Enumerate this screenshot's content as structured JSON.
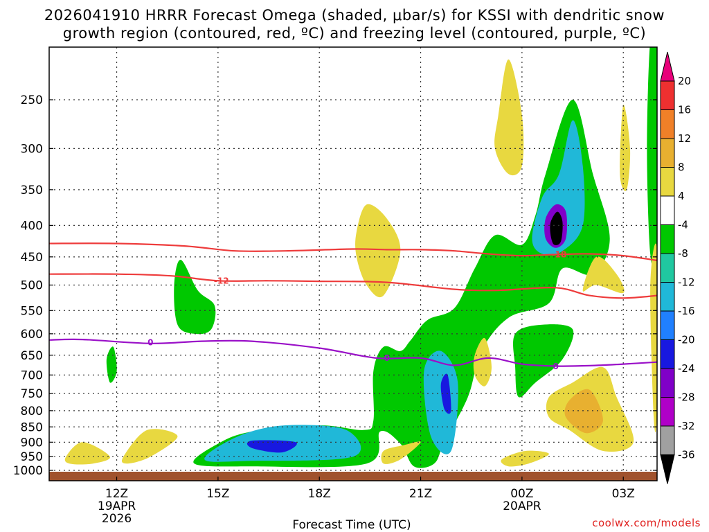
{
  "title": {
    "line1": "2026041910 HRRR Forecast Omega (shaded, μbar/s) for KSSI with dendritic snow",
    "line2": "growth region (contoured, red, ºC) and freezing level (contoured, purple, ºC)"
  },
  "credit": "coolwx.com/models",
  "chart_data": {
    "type": "time-height cross section",
    "xlabel": "Forecast Time (UTC)",
    "ylabel": "",
    "x_units": "forecast hours from 2026-04-19 10Z",
    "xlim": [
      0,
      18
    ],
    "ylim": [
      1000,
      200
    ],
    "y_scale": "log-pressure",
    "x_ticks": [
      {
        "hour": 2,
        "label": "12Z",
        "sub1": "19APR",
        "sub2": "2026"
      },
      {
        "hour": 5,
        "label": "15Z",
        "sub1": "",
        "sub2": ""
      },
      {
        "hour": 8,
        "label": "18Z",
        "sub1": "",
        "sub2": ""
      },
      {
        "hour": 11,
        "label": "21Z",
        "sub1": "",
        "sub2": ""
      },
      {
        "hour": 14,
        "label": "00Z",
        "sub1": "20APR",
        "sub2": ""
      },
      {
        "hour": 17,
        "label": "03Z",
        "sub1": "",
        "sub2": ""
      }
    ],
    "y_ticks": [
      250,
      300,
      350,
      400,
      450,
      500,
      550,
      600,
      650,
      700,
      750,
      800,
      850,
      900,
      950,
      1000
    ],
    "colorbar": {
      "label_units": "μbar/s",
      "levels": [
        "20",
        "16",
        "12",
        "8",
        "4",
        "-4",
        "-8",
        "-12",
        "-16",
        "-20",
        "-24",
        "-28",
        "-32",
        "-36"
      ],
      "colors": [
        "#e8007a",
        "#ee3030",
        "#f08028",
        "#e8b030",
        "#e8d840",
        "#ffffff",
        "#00c800",
        "#20c8a0",
        "#20b8d8",
        "#2080ff",
        "#1818e0",
        "#8000c8",
        "#b000c8",
        "#a0a0a0",
        "#000000"
      ]
    },
    "shaded_regions": [
      {
        "name": "upward-motion-lower",
        "range": "-4 to -8",
        "fill": "#00c800",
        "points": [
          [
            4.3,
            975
          ],
          [
            5,
            905
          ],
          [
            6,
            865
          ],
          [
            8,
            845
          ],
          [
            9.3,
            860
          ],
          [
            9.6,
            830
          ],
          [
            9.6,
            690
          ],
          [
            9.9,
            630
          ],
          [
            10.4,
            640
          ],
          [
            10.7,
            615
          ],
          [
            11.2,
            570
          ],
          [
            12,
            545
          ],
          [
            12.6,
            470
          ],
          [
            13.2,
            415
          ],
          [
            14,
            430
          ],
          [
            14.4,
            385
          ],
          [
            14.7,
            330
          ],
          [
            15.5,
            250
          ],
          [
            16.1,
            330
          ],
          [
            16.6,
            420
          ],
          [
            16.1,
            480
          ],
          [
            15.2,
            470
          ],
          [
            14.8,
            535
          ],
          [
            13.6,
            565
          ],
          [
            12.8,
            640
          ],
          [
            12.4,
            760
          ],
          [
            11.7,
            900
          ],
          [
            11.4,
            975
          ],
          [
            10.8,
            985
          ],
          [
            10.4,
            905
          ],
          [
            9.8,
            865
          ],
          [
            9.4,
            975
          ],
          [
            6,
            985
          ]
        ]
      },
      {
        "name": "upward-motion-upper-right",
        "range": "-4 to -8",
        "fill": "#00c800",
        "points": [
          [
            17.8,
            200
          ],
          [
            18,
            200
          ],
          [
            18,
            440
          ],
          [
            17.8,
            445
          ],
          [
            17.7,
            300
          ]
        ]
      },
      {
        "name": "upward-motion-mid-left",
        "range": "-4 to -8",
        "fill": "#00c800",
        "points": [
          [
            3.7,
            500
          ],
          [
            3.9,
            455
          ],
          [
            4.4,
            510
          ],
          [
            4.9,
            540
          ],
          [
            4.8,
            590
          ],
          [
            4.3,
            600
          ],
          [
            3.8,
            580
          ]
        ]
      },
      {
        "name": "upward-motion-small-left",
        "range": "-4 to -8",
        "fill": "#00c800",
        "points": [
          [
            1.7,
            660
          ],
          [
            1.9,
            630
          ],
          [
            2,
            690
          ],
          [
            1.8,
            720
          ]
        ]
      },
      {
        "name": "upward-motion-right-low",
        "range": "-4 to -8",
        "fill": "#00c800",
        "points": [
          [
            13.8,
            600
          ],
          [
            14.6,
            580
          ],
          [
            15.5,
            590
          ],
          [
            15.2,
            660
          ],
          [
            14.4,
            720
          ],
          [
            13.9,
            760
          ],
          [
            13.8,
            680
          ]
        ]
      },
      {
        "name": "upward-motion-lower-core",
        "range": "-8 to -16",
        "fill": "#20b8d8",
        "points": [
          [
            4.6,
            960
          ],
          [
            5.6,
            880
          ],
          [
            7,
            845
          ],
          [
            8.8,
            860
          ],
          [
            9,
            950
          ],
          [
            6,
            965
          ]
        ]
      },
      {
        "name": "upward-motion-lower-strong",
        "range": "-20 to -24",
        "fill": "#1818e0",
        "points": [
          [
            6,
            895
          ],
          [
            7.3,
            900
          ],
          [
            6.9,
            935
          ],
          [
            6,
            920
          ]
        ]
      },
      {
        "name": "upward-motion-mid-core",
        "range": "-8 to -16",
        "fill": "#20b8d8",
        "points": [
          [
            11.1,
            690
          ],
          [
            11.6,
            640
          ],
          [
            12.1,
            720
          ],
          [
            11.9,
            930
          ],
          [
            11.3,
            880
          ]
        ]
      },
      {
        "name": "upward-motion-mid-strong",
        "range": "-16 to -24",
        "fill": "#1818e0",
        "points": [
          [
            11.6,
            725
          ],
          [
            11.8,
            700
          ],
          [
            11.9,
            800
          ],
          [
            11.7,
            795
          ]
        ]
      },
      {
        "name": "upward-motion-upper-core",
        "range": "-8 to -28",
        "fill": "#20b8d8",
        "points": [
          [
            14.3,
            420
          ],
          [
            14.6,
            360
          ],
          [
            15.1,
            330
          ],
          [
            15.5,
            270
          ],
          [
            15.8,
            320
          ],
          [
            15.8,
            400
          ],
          [
            15.2,
            440
          ],
          [
            14.6,
            445
          ]
        ]
      },
      {
        "name": "upward-motion-upper-strong",
        "range": "-28 to -32",
        "fill": "#8000c8",
        "points": [
          [
            14.7,
            390
          ],
          [
            15,
            370
          ],
          [
            15.3,
            380
          ],
          [
            15.3,
            420
          ],
          [
            15,
            435
          ],
          [
            14.7,
            420
          ]
        ]
      },
      {
        "name": "upward-motion-upper-max",
        "range": "< -36",
        "fill": "#000000",
        "points": [
          [
            14.85,
            395
          ],
          [
            15.05,
            380
          ],
          [
            15.2,
            395
          ],
          [
            15.15,
            425
          ],
          [
            14.95,
            430
          ],
          [
            14.85,
            415
          ]
        ]
      },
      {
        "name": "sinking-motion-upper-a",
        "range": "4 to 8",
        "fill": "#e8d840",
        "points": [
          [
            13.3,
            265
          ],
          [
            13.6,
            215
          ],
          [
            14,
            265
          ],
          [
            14,
            320
          ],
          [
            13.6,
            330
          ],
          [
            13.2,
            300
          ]
        ]
      },
      {
        "name": "sinking-motion-upper-b",
        "range": "4 to 8",
        "fill": "#e8d840",
        "points": [
          [
            16.9,
            330
          ],
          [
            17,
            255
          ],
          [
            17.2,
            300
          ],
          [
            17.1,
            350
          ]
        ]
      },
      {
        "name": "sinking-motion-mid-a",
        "range": "4 to 8",
        "fill": "#e8d840",
        "points": [
          [
            9.1,
            410
          ],
          [
            9.4,
            370
          ],
          [
            10,
            390
          ],
          [
            10.4,
            440
          ],
          [
            9.9,
            520
          ],
          [
            9.4,
            500
          ],
          [
            9.1,
            450
          ]
        ]
      },
      {
        "name": "sinking-motion-mid-b",
        "range": "4 to 8",
        "fill": "#e8d840",
        "points": [
          [
            15.8,
            510
          ],
          [
            16.2,
            450
          ],
          [
            16.8,
            480
          ],
          [
            17,
            515
          ],
          [
            16.2,
            500
          ]
        ]
      },
      {
        "name": "sinking-motion-right-edge",
        "range": "4 to 8",
        "fill": "#e8d840",
        "points": [
          [
            17.8,
            500
          ],
          [
            18,
            440
          ],
          [
            18,
            800
          ],
          [
            17.9,
            820
          ]
        ]
      },
      {
        "name": "sinking-motion-low-a",
        "range": "4 to 8",
        "fill": "#e8d840",
        "points": [
          [
            14.8,
            760
          ],
          [
            15.5,
            720
          ],
          [
            16.4,
            680
          ],
          [
            16.8,
            760
          ],
          [
            17.3,
            900
          ],
          [
            16.4,
            930
          ],
          [
            15.4,
            860
          ],
          [
            14.8,
            820
          ]
        ]
      },
      {
        "name": "sinking-motion-low-a-core",
        "range": "8 to 12",
        "fill": "#e8b030",
        "points": [
          [
            15.4,
            770
          ],
          [
            16,
            740
          ],
          [
            16.4,
            830
          ],
          [
            15.9,
            870
          ],
          [
            15.3,
            820
          ]
        ]
      },
      {
        "name": "sinking-motion-low-b",
        "range": "4 to 8",
        "fill": "#e8d840",
        "points": [
          [
            12.6,
            650
          ],
          [
            12.9,
            610
          ],
          [
            13.1,
            680
          ],
          [
            12.9,
            730
          ],
          [
            12.6,
            700
          ]
        ]
      },
      {
        "name": "sinking-motion-low-c",
        "range": "4 to 8",
        "fill": "#e8d840",
        "points": [
          [
            0.5,
            950
          ],
          [
            1,
            900
          ],
          [
            1.8,
            950
          ],
          [
            1.3,
            975
          ],
          [
            0.6,
            975
          ]
        ]
      },
      {
        "name": "sinking-motion-low-d",
        "range": "4 to 8",
        "fill": "#e8d840",
        "points": [
          [
            2.2,
            950
          ],
          [
            2.9,
            860
          ],
          [
            3.8,
            880
          ],
          [
            3,
            950
          ],
          [
            2.3,
            975
          ]
        ]
      },
      {
        "name": "sinking-motion-low-e",
        "range": "4 to 8",
        "fill": "#e8d840",
        "points": [
          [
            9.9,
            930
          ],
          [
            10.5,
            910
          ],
          [
            11,
            900
          ],
          [
            10.4,
            960
          ],
          [
            9.9,
            975
          ]
        ]
      },
      {
        "name": "sinking-motion-low-f",
        "range": "4 to 8",
        "fill": "#e8d840",
        "points": [
          [
            13.4,
            960
          ],
          [
            14.1,
            930
          ],
          [
            14.8,
            940
          ],
          [
            14.2,
            975
          ],
          [
            13.6,
            985
          ]
        ]
      }
    ],
    "contour_lines": [
      {
        "name": "dgz-minus-18",
        "label": "-18",
        "color": "#ee3b3b",
        "label_hour": 15.1,
        "points": [
          [
            0,
            428
          ],
          [
            2,
            428
          ],
          [
            4,
            432
          ],
          [
            5.5,
            440
          ],
          [
            7,
            440
          ],
          [
            9,
            437
          ],
          [
            10,
            438
          ],
          [
            11,
            438
          ],
          [
            12,
            440
          ],
          [
            13,
            445
          ],
          [
            14,
            448
          ],
          [
            15,
            446
          ],
          [
            16,
            445
          ],
          [
            17,
            448
          ],
          [
            18,
            456
          ]
        ]
      },
      {
        "name": "dgz-minus-12",
        "label": "-12",
        "color": "#ee3b3b",
        "label_hour": 5.1,
        "points": [
          [
            0,
            480
          ],
          [
            2,
            480
          ],
          [
            3.6,
            483
          ],
          [
            5,
            492
          ],
          [
            6.5,
            492
          ],
          [
            8,
            493
          ],
          [
            10,
            495
          ],
          [
            12,
            508
          ],
          [
            13.3,
            510
          ],
          [
            15,
            505
          ],
          [
            16,
            520
          ],
          [
            17,
            525
          ],
          [
            18,
            520
          ]
        ]
      },
      {
        "name": "freezing-level",
        "label": "0",
        "color": "#9a10c8",
        "label_hour": 3,
        "points": [
          [
            0,
            614
          ],
          [
            1,
            613
          ],
          [
            3,
            622
          ],
          [
            4.5,
            617
          ],
          [
            6,
            617
          ],
          [
            8,
            633
          ],
          [
            9.7,
            657
          ],
          [
            11,
            657
          ],
          [
            12,
            675
          ],
          [
            13,
            657
          ],
          [
            14,
            672
          ],
          [
            15,
            677
          ],
          [
            16,
            676
          ],
          [
            17,
            672
          ],
          [
            18,
            667
          ]
        ]
      }
    ],
    "contour_label_positions": [
      {
        "label": "0",
        "hour": 3,
        "pres": 620
      },
      {
        "label": "0",
        "hour": 10,
        "pres": 657
      },
      {
        "label": "0",
        "hour": 15,
        "pres": 678
      },
      {
        "label": "-12",
        "hour": 5.1,
        "pres": 492
      },
      {
        "label": "-18",
        "hour": 15.1,
        "pres": 446
      }
    ]
  }
}
